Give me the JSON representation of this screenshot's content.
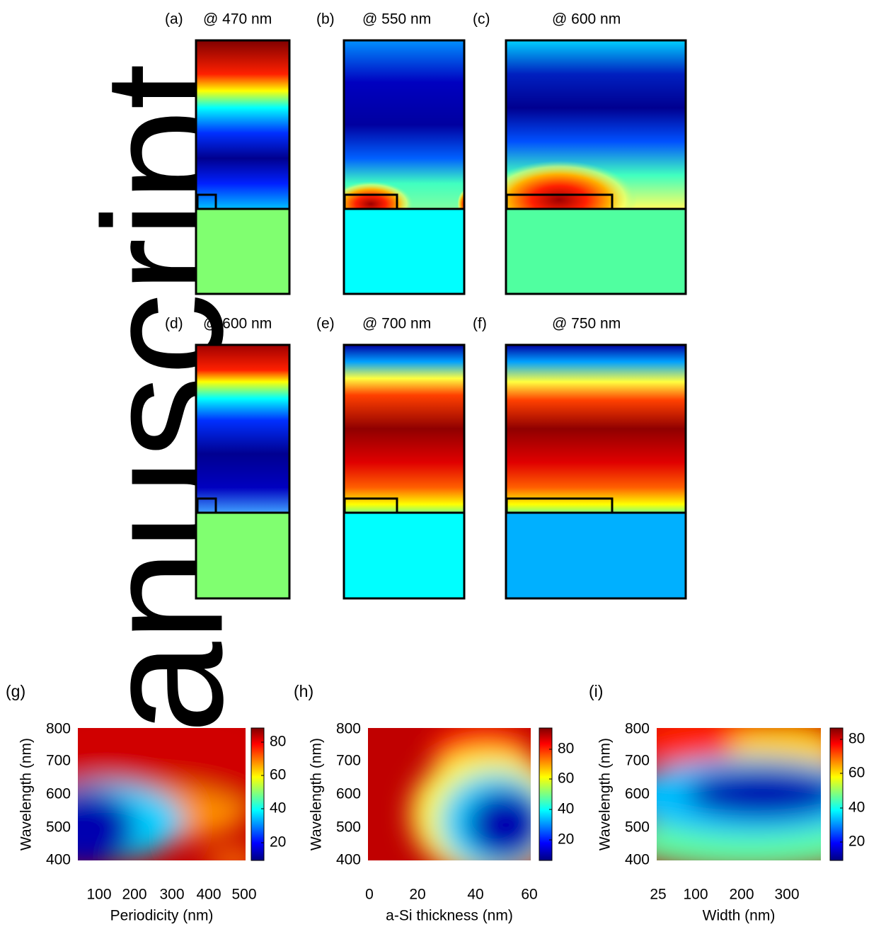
{
  "watermark": "Manuscript",
  "panels": [
    {
      "label": "(a)",
      "title": "@ 470 nm"
    },
    {
      "label": "(b)",
      "title": "@ 550 nm"
    },
    {
      "label": "(c)",
      "title": "@ 600 nm"
    },
    {
      "label": "(d)",
      "title": "@ 600 nm"
    },
    {
      "label": "(e)",
      "title": "@ 700 nm"
    },
    {
      "label": "(f)",
      "title": "@ 750 nm"
    }
  ],
  "plots": [
    {
      "label": "(g)",
      "xlabel": "Periodicity (nm)",
      "ylabel": "Wavelength (nm)",
      "xticks": [
        "100",
        "200",
        "300",
        "400",
        "500"
      ],
      "yticks": [
        "800",
        "700",
        "600",
        "500",
        "400"
      ],
      "cbticks": [
        "80",
        "60",
        "40",
        "20"
      ]
    },
    {
      "label": "(h)",
      "xlabel": "a-Si thickness (nm)",
      "ylabel": "Wavelength (nm)",
      "xticks": [
        "0",
        "20",
        "40",
        "60"
      ],
      "yticks": [
        "800",
        "700",
        "600",
        "500",
        "400"
      ],
      "cbticks": [
        "80",
        "60",
        "40",
        "20"
      ]
    },
    {
      "label": "(i)",
      "xlabel": "Width (nm)",
      "ylabel": "Wavelength (nm)",
      "xticks": [
        "25",
        "100",
        "200",
        "300"
      ],
      "yticks": [
        "800",
        "700",
        "600",
        "500",
        "400"
      ],
      "cbticks": [
        "80",
        "60",
        "40",
        "20"
      ]
    }
  ]
}
